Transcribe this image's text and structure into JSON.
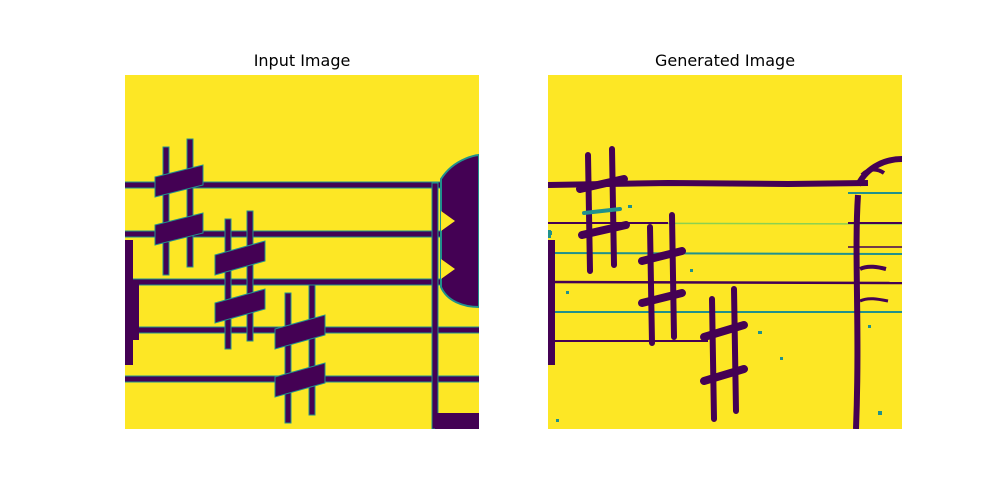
{
  "panels": {
    "left": {
      "title": "Input Image"
    },
    "right": {
      "title": "Generated Image"
    }
  },
  "colors": {
    "background": "#fde725",
    "ink": "#440154",
    "edge": "#21918c",
    "edge_light": "#5ec962"
  }
}
